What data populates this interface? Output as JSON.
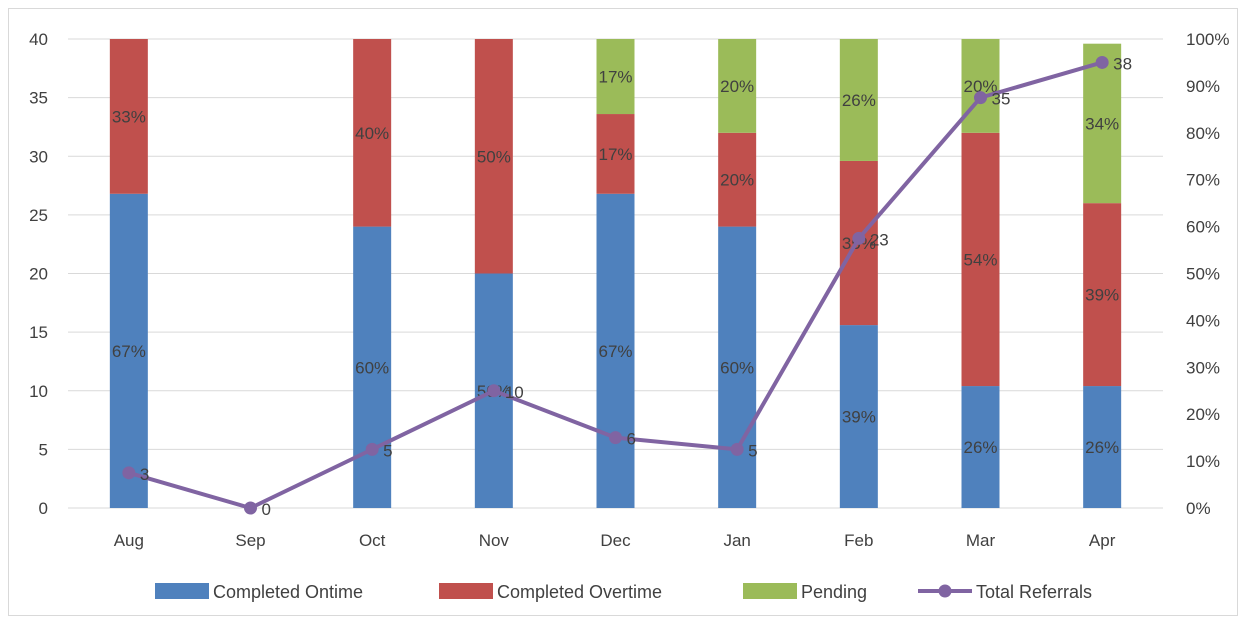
{
  "chart_data": {
    "type": "bar",
    "subtype": "stacked-bar-with-line",
    "title": "",
    "xlabel": "",
    "ylabel": "",
    "categories": [
      "Aug",
      "Sep",
      "Oct",
      "Nov",
      "Dec",
      "Jan",
      "Feb",
      "Mar",
      "Apr"
    ],
    "y_left": {
      "min": 0,
      "max": 40,
      "ticks": [
        "0",
        "5",
        "10",
        "15",
        "20",
        "25",
        "30",
        "35",
        "40"
      ]
    },
    "y_right": {
      "min": 0,
      "max": 100,
      "unit": "%",
      "ticks": [
        "0%",
        "10%",
        "20%",
        "30%",
        "40%",
        "50%",
        "60%",
        "70%",
        "80%",
        "90%",
        "100%"
      ]
    },
    "grid": true,
    "legend_position": "bottom",
    "series": [
      {
        "name": "Completed Ontime",
        "type": "stacked-bar",
        "axis": "right",
        "color": "#4f81bd",
        "values": [
          67,
          0,
          60,
          50,
          67,
          60,
          39,
          26,
          26
        ],
        "labels": [
          "67%",
          "",
          "60%",
          "50%",
          "67%",
          "60%",
          "39%",
          "26%",
          "26%"
        ]
      },
      {
        "name": "Completed Overtime",
        "type": "stacked-bar",
        "axis": "right",
        "color": "#c0504d",
        "values": [
          33,
          0,
          40,
          50,
          17,
          20,
          35,
          54,
          39
        ],
        "labels": [
          "33%",
          "",
          "40%",
          "50%",
          "17%",
          "20%",
          "35%",
          "54%",
          "39%"
        ]
      },
      {
        "name": "Pending",
        "type": "stacked-bar",
        "axis": "right",
        "color": "#9bbb59",
        "values": [
          0,
          0,
          0,
          0,
          17,
          20,
          26,
          20,
          34
        ],
        "labels": [
          "",
          "",
          "",
          "",
          "17%",
          "20%",
          "26%",
          "20%",
          "34%"
        ]
      },
      {
        "name": "Total Referrals",
        "type": "line",
        "axis": "left",
        "color": "#8064a2",
        "values": [
          3,
          0,
          5,
          10,
          6,
          5,
          23,
          35,
          38
        ],
        "labels": [
          "3",
          "0",
          "5",
          "10",
          "6",
          "5",
          "23",
          "35",
          "38"
        ]
      }
    ]
  }
}
